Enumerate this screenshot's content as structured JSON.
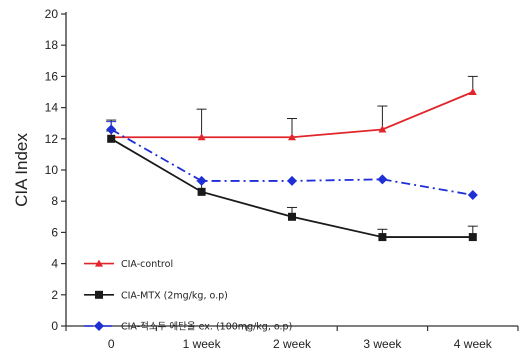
{
  "chart_data": {
    "type": "line",
    "ylabel": "CIA Index",
    "xlabel": "",
    "categories": [
      "0",
      "1 week",
      "2 week",
      "3 week",
      "4 week"
    ],
    "ylim": [
      0,
      20
    ],
    "yticks": [
      0,
      2,
      4,
      6,
      8,
      10,
      12,
      14,
      16,
      18,
      20
    ],
    "grid": false,
    "legend_position": "bottom-left",
    "series": [
      {
        "name": "CIA-control",
        "values": [
          12.1,
          12.1,
          12.1,
          12.6,
          15.0
        ],
        "errors": [
          0.4,
          1.8,
          1.2,
          1.5,
          1.0
        ],
        "color": "#e0262b",
        "marker": "triangle",
        "linestyle": "solid"
      },
      {
        "name": "CIA-MTX (2mg/kg, o.p)",
        "values": [
          12.0,
          8.6,
          7.0,
          5.7,
          5.7
        ],
        "errors": [
          1.2,
          0.7,
          0.6,
          0.5,
          0.7
        ],
        "color": "#1a1a1a",
        "marker": "square",
        "linestyle": "solid"
      },
      {
        "name": "CIA-적소두 에탄올 ex. (100mg/kg, o.p)",
        "values": [
          12.6,
          9.3,
          9.3,
          9.4,
          8.4
        ],
        "errors": [
          0.5,
          0.0,
          0.0,
          0.0,
          0.0
        ],
        "color": "#1f2fd6",
        "marker": "diamond",
        "linestyle": "dashdot"
      }
    ]
  }
}
